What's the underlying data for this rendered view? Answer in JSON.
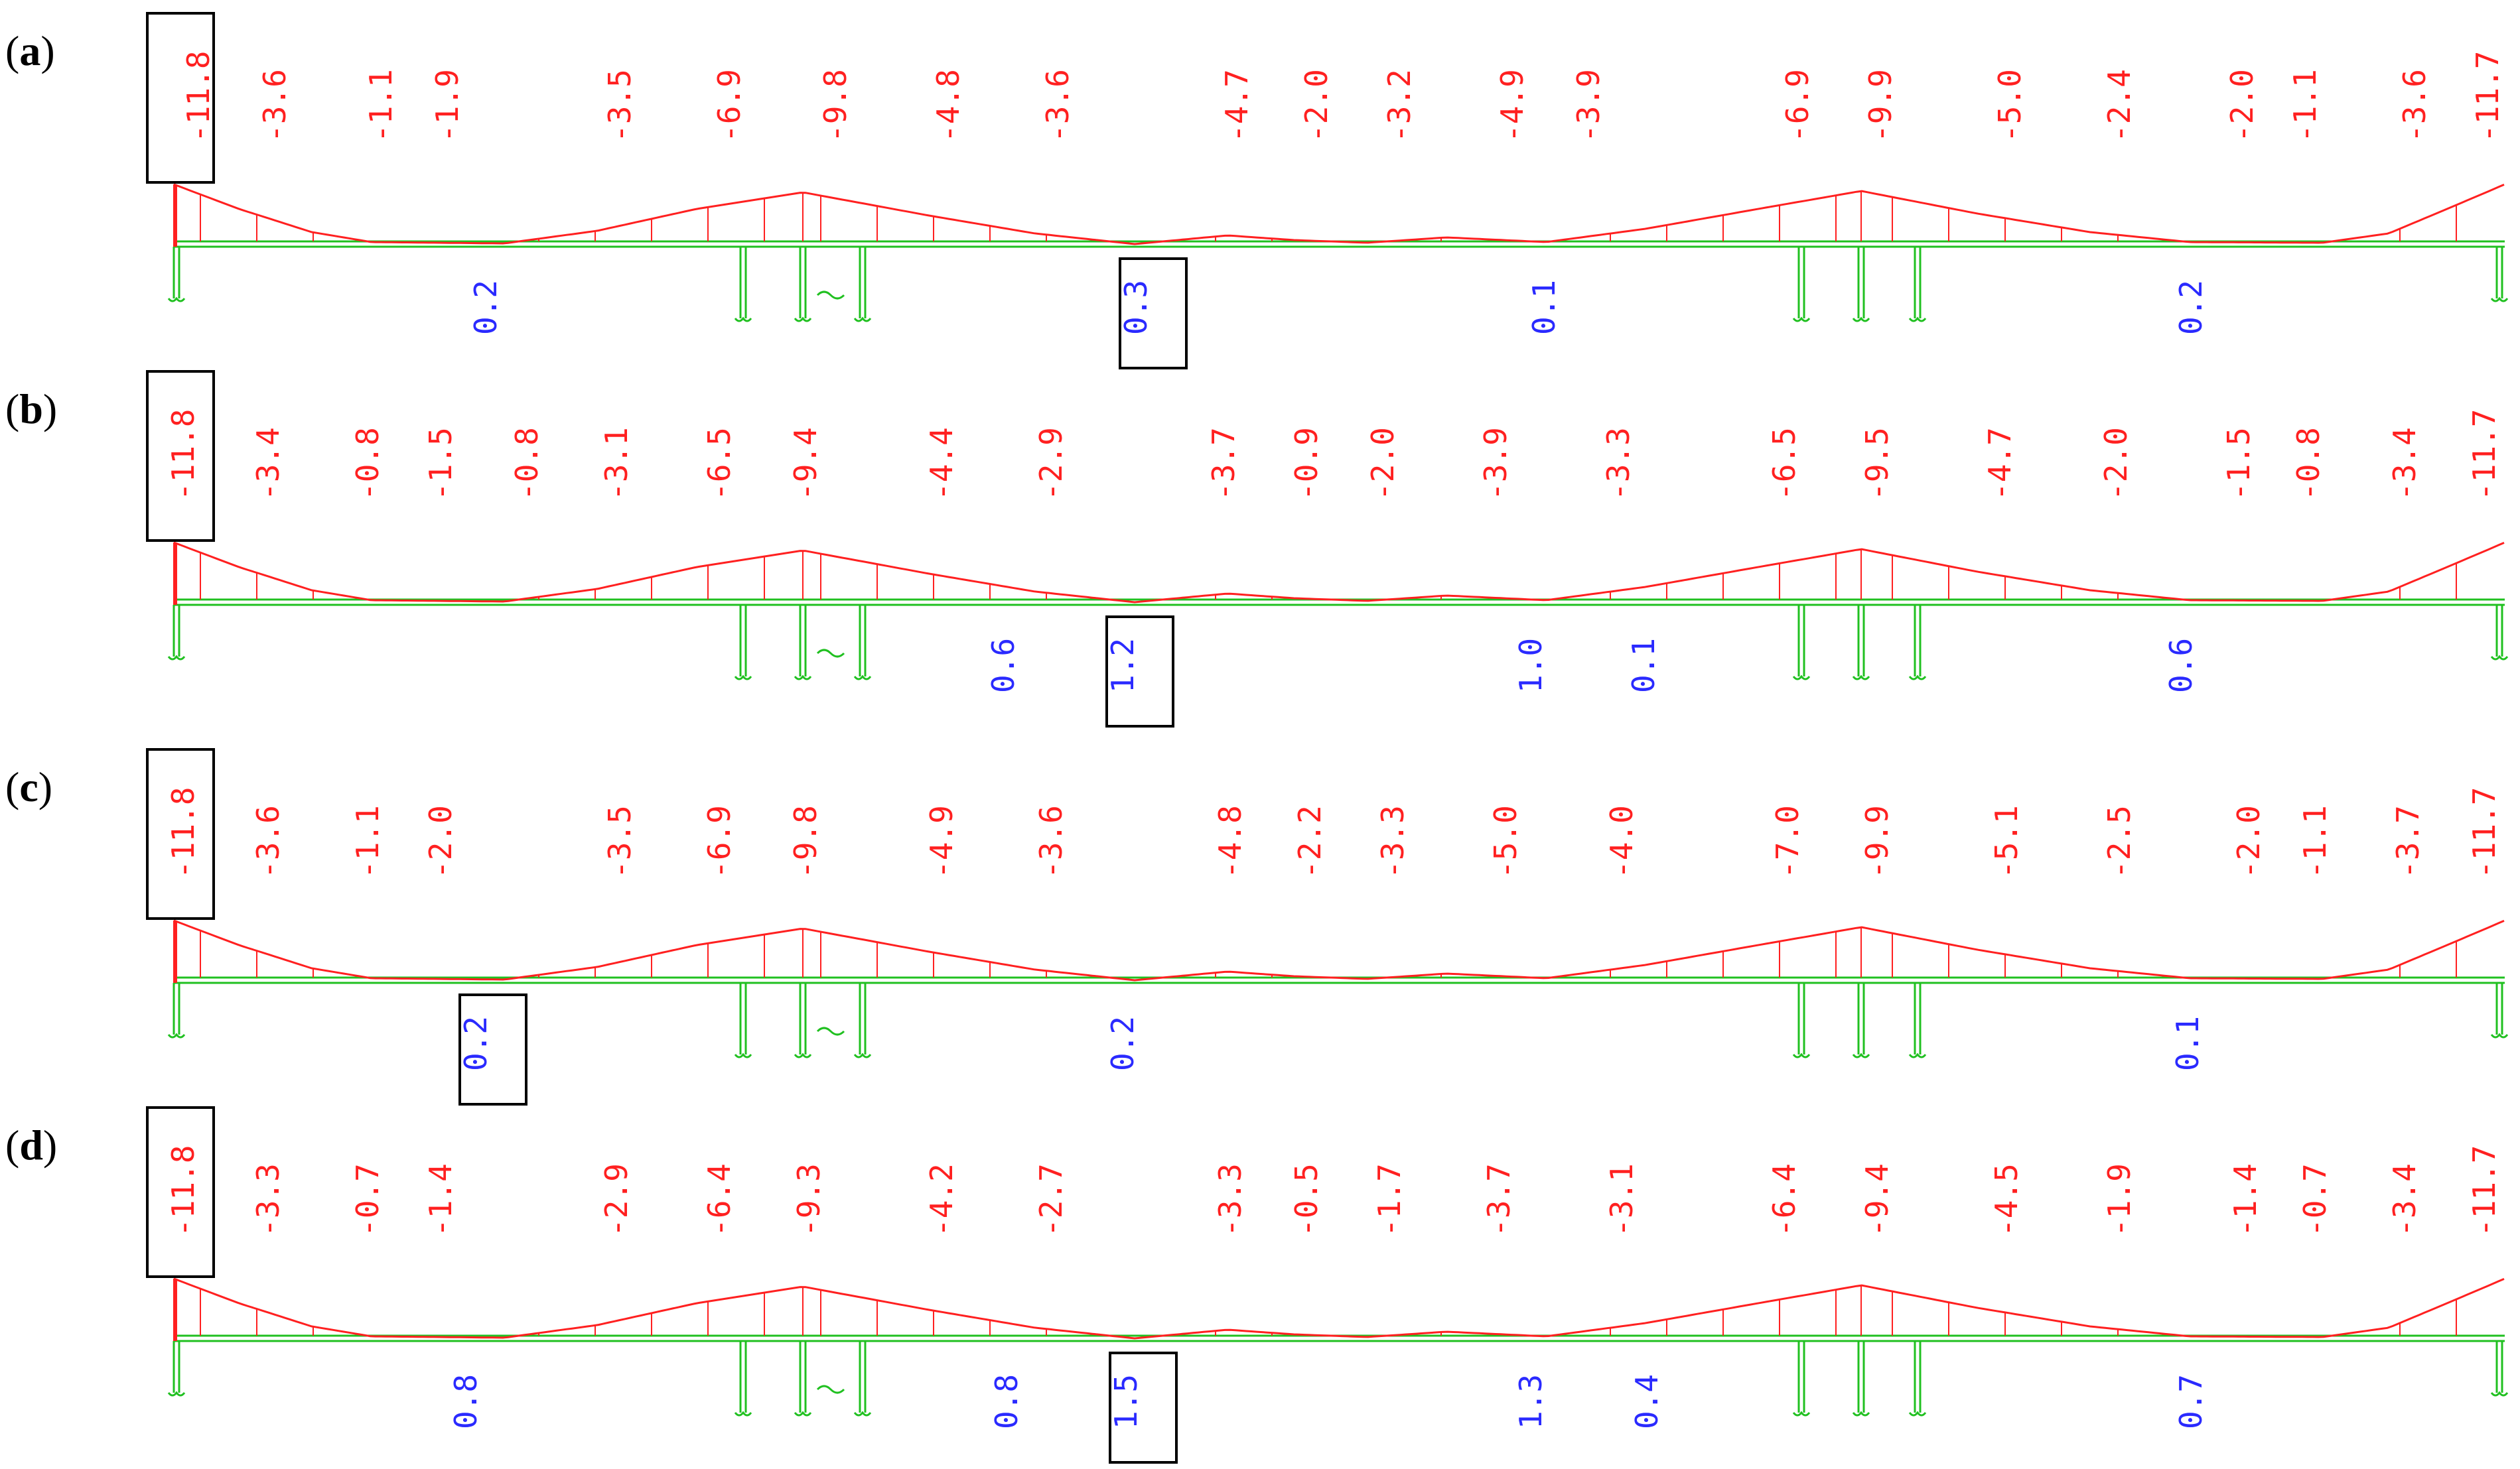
{
  "panels": [
    {
      "label": "a",
      "negative": [
        "-11.8",
        "-3.6",
        "-1.1",
        "-1.9",
        "-3.5",
        "-6.9",
        "-9.8",
        "-4.8",
        "-3.6",
        "-4.7",
        "-2.0",
        "-3.2",
        "-4.9",
        "-3.9",
        "-6.9",
        "-9.9",
        "-5.0",
        "-2.4",
        "-2.0",
        "-1.1",
        "-3.6",
        "-11.7"
      ],
      "positive": [
        "0.2",
        "0.3",
        "0.1",
        "0.2"
      ],
      "boxed_negative": "-11.8",
      "boxed_positive": "0.3"
    },
    {
      "label": "b",
      "negative": [
        "-11.8",
        "-3.4",
        "-0.8",
        "-1.5",
        "-0.8",
        "-3.1",
        "-6.5",
        "-9.4",
        "-4.4",
        "-2.9",
        "-3.7",
        "-0.9",
        "-2.0",
        "-3.9",
        "-3.3",
        "-6.5",
        "-9.5",
        "-4.7",
        "-2.0",
        "-1.5",
        "-0.8",
        "-3.4",
        "-11.7"
      ],
      "positive": [
        "0.6",
        "1.2",
        "1.0",
        "0.1",
        "0.6"
      ],
      "boxed_negative": "-11.8",
      "boxed_positive": "1.2"
    },
    {
      "label": "c",
      "negative": [
        "-11.8",
        "-3.6",
        "-1.1",
        "-2.0",
        "-3.5",
        "-6.9",
        "-9.8",
        "-4.9",
        "-3.6",
        "-4.8",
        "-2.2",
        "-3.3",
        "-5.0",
        "-4.0",
        "-7.0",
        "-9.9",
        "-5.1",
        "-2.5",
        "-2.0",
        "-1.1",
        "-3.7",
        "-11.7"
      ],
      "positive": [
        "0.2",
        "0.2",
        "0.1"
      ],
      "boxed_negative": "-11.8",
      "boxed_positive": "0.2"
    },
    {
      "label": "d",
      "negative": [
        "-11.8",
        "-3.3",
        "-0.7",
        "-1.4",
        "-2.9",
        "-6.4",
        "-9.3",
        "-4.2",
        "-2.7",
        "-3.3",
        "-0.5",
        "-1.7",
        "-3.7",
        "-3.1",
        "-6.4",
        "-9.4",
        "-4.5",
        "-1.9",
        "-1.4",
        "-0.7",
        "-3.4",
        "-11.7"
      ],
      "positive": [
        "0.8",
        "0.8",
        "1.5",
        "1.3",
        "0.4",
        "0.7"
      ],
      "boxed_negative": "-11.8",
      "boxed_positive": "1.5"
    }
  ],
  "colors": {
    "negative_moment": "#ff2020",
    "positive_moment": "#2a2aff",
    "beam_supports": "#20c020",
    "frame_box": "#000000"
  },
  "icons": [
    "support-icon"
  ]
}
